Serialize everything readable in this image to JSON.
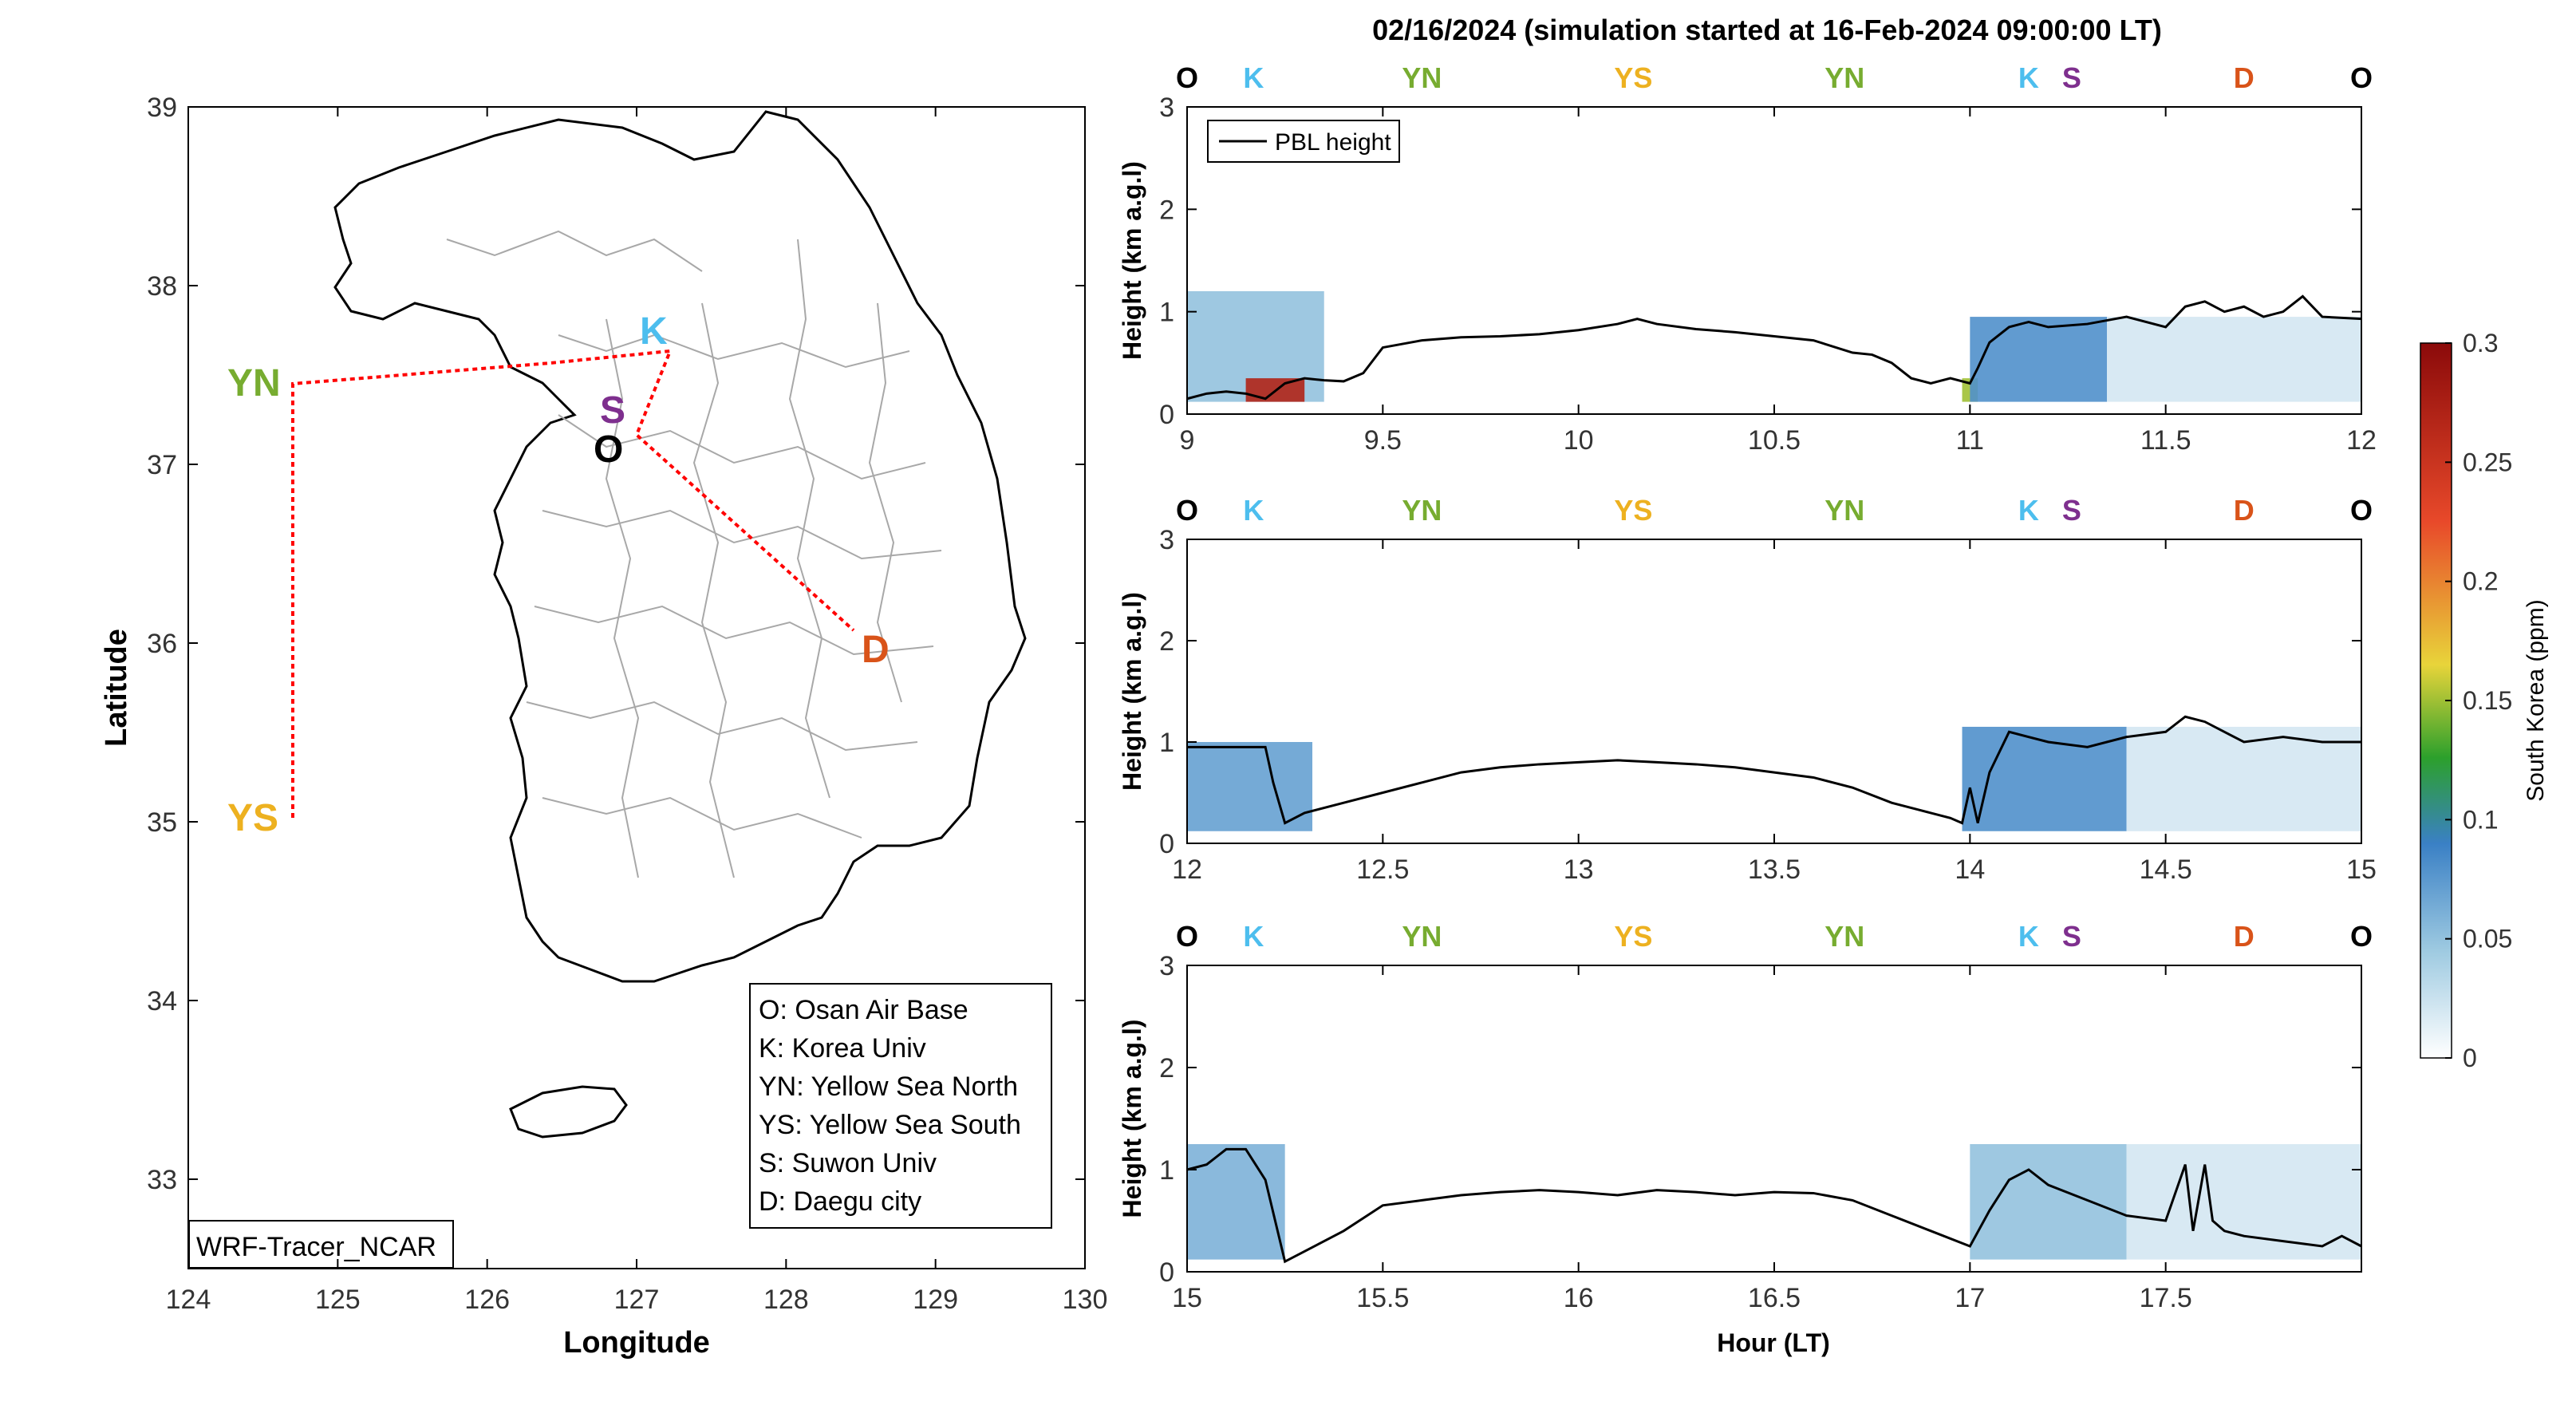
{
  "title": "02/16/2024 (simulation started at 16-Feb-2024 09:00:00 LT)",
  "colors": {
    "O": "#000000",
    "K": "#4DBEEE",
    "YN": "#77AC30",
    "YS": "#EDB120",
    "S": "#7E2F8E",
    "D": "#D95319",
    "route": "#FF0000",
    "pbl": "#000000"
  },
  "chart_data": [
    {
      "type": "map",
      "xlabel": "Longitude",
      "ylabel": "Latitude",
      "xlim": [
        124,
        130
      ],
      "ylim": [
        32.5,
        39
      ],
      "xticks": [
        "124",
        "125",
        "126",
        "127",
        "128",
        "129",
        "130"
      ],
      "yticks": [
        "33",
        "34",
        "35",
        "36",
        "37",
        "38",
        "39"
      ],
      "sites": [
        {
          "code": "YN",
          "lon": 124.7,
          "lat": 37.45
        },
        {
          "code": "YS",
          "lon": 124.7,
          "lat": 35.05
        },
        {
          "code": "K",
          "lon": 127.2,
          "lat": 37.6
        },
        {
          "code": "S",
          "lon": 127.0,
          "lat": 37.3
        },
        {
          "code": "O",
          "lon": 127.0,
          "lat": 37.1
        },
        {
          "code": "D",
          "lon": 128.6,
          "lat": 36.1
        }
      ],
      "legend": [
        "O: Osan Air Base",
        "K: Korea Univ",
        "YN: Yellow Sea North",
        "YS: Yellow Sea South",
        "S: Suwon Univ",
        "D: Daegu city"
      ],
      "model_label": "WRF-Tracer_NCAR"
    },
    {
      "type": "heatmap",
      "ylabel": "Height (km a.g.l)",
      "xlim": [
        9,
        12
      ],
      "ylim": [
        0,
        3
      ],
      "xticks": [
        "9",
        "9.5",
        "10",
        "10.5",
        "11",
        "11.5",
        "12"
      ],
      "yticks": [
        "0",
        "1",
        "2",
        "3"
      ],
      "site_markers": [
        {
          "code": "O",
          "x": 9.0
        },
        {
          "code": "K",
          "x": 9.17
        },
        {
          "code": "YN",
          "x": 9.6
        },
        {
          "code": "YS",
          "x": 10.14
        },
        {
          "code": "YN",
          "x": 10.68
        },
        {
          "code": "K",
          "x": 11.15
        },
        {
          "code": "S",
          "x": 11.26
        },
        {
          "code": "D",
          "x": 11.7
        },
        {
          "code": "O",
          "x": 12.0
        }
      ],
      "legend": [
        "PBL height"
      ],
      "pbl": {
        "x": [
          9.0,
          9.05,
          9.1,
          9.15,
          9.2,
          9.25,
          9.3,
          9.35,
          9.4,
          9.45,
          9.5,
          9.6,
          9.7,
          9.8,
          9.9,
          10.0,
          10.1,
          10.15,
          10.2,
          10.3,
          10.4,
          10.5,
          10.6,
          10.7,
          10.75,
          10.8,
          10.85,
          10.9,
          10.95,
          11.0,
          11.02,
          11.05,
          11.1,
          11.15,
          11.2,
          11.3,
          11.4,
          11.5,
          11.55,
          11.6,
          11.65,
          11.7,
          11.75,
          11.8,
          11.85,
          11.9,
          12.0
        ],
        "y": [
          0.15,
          0.2,
          0.22,
          0.2,
          0.15,
          0.3,
          0.35,
          0.33,
          0.32,
          0.4,
          0.65,
          0.72,
          0.75,
          0.76,
          0.78,
          0.82,
          0.88,
          0.93,
          0.88,
          0.83,
          0.8,
          0.76,
          0.72,
          0.6,
          0.58,
          0.5,
          0.35,
          0.3,
          0.35,
          0.3,
          0.45,
          0.7,
          0.85,
          0.9,
          0.85,
          0.88,
          0.95,
          0.85,
          1.05,
          1.1,
          1.0,
          1.05,
          0.95,
          1.0,
          1.15,
          0.95,
          0.93
        ]
      },
      "concentration": [
        {
          "x0": 9.0,
          "x1": 9.35,
          "h": 1.2,
          "c": 0.05
        },
        {
          "x0": 9.15,
          "x1": 9.3,
          "h": 0.35,
          "c": 0.27
        },
        {
          "x0": 10.98,
          "x1": 11.02,
          "h": 0.35,
          "c": 0.15
        },
        {
          "x0": 11.0,
          "x1": 11.35,
          "h": 0.95,
          "c": 0.08
        },
        {
          "x0": 11.35,
          "x1": 12.0,
          "h": 0.95,
          "c": 0.02
        }
      ]
    },
    {
      "type": "heatmap",
      "ylabel": "Height (km a.g.l)",
      "xlim": [
        12,
        15
      ],
      "ylim": [
        0,
        3
      ],
      "xticks": [
        "12",
        "12.5",
        "13",
        "13.5",
        "14",
        "14.5",
        "15"
      ],
      "yticks": [
        "0",
        "1",
        "2",
        "3"
      ],
      "site_markers": [
        {
          "code": "O",
          "x": 12.0
        },
        {
          "code": "K",
          "x": 12.17
        },
        {
          "code": "YN",
          "x": 12.6
        },
        {
          "code": "YS",
          "x": 13.14
        },
        {
          "code": "YN",
          "x": 13.68
        },
        {
          "code": "K",
          "x": 14.15
        },
        {
          "code": "S",
          "x": 14.26
        },
        {
          "code": "D",
          "x": 14.7
        },
        {
          "code": "O",
          "x": 15.0
        }
      ],
      "pbl": {
        "x": [
          12.0,
          12.1,
          12.2,
          12.22,
          12.25,
          12.3,
          12.4,
          12.5,
          12.6,
          12.7,
          12.8,
          12.9,
          13.0,
          13.1,
          13.2,
          13.3,
          13.4,
          13.5,
          13.6,
          13.7,
          13.8,
          13.9,
          13.95,
          13.98,
          14.0,
          14.02,
          14.05,
          14.1,
          14.2,
          14.3,
          14.4,
          14.5,
          14.55,
          14.6,
          14.7,
          14.8,
          14.9,
          15.0
        ],
        "y": [
          0.95,
          0.95,
          0.95,
          0.6,
          0.2,
          0.3,
          0.4,
          0.5,
          0.6,
          0.7,
          0.75,
          0.78,
          0.8,
          0.82,
          0.8,
          0.78,
          0.75,
          0.7,
          0.65,
          0.55,
          0.4,
          0.3,
          0.25,
          0.2,
          0.55,
          0.2,
          0.7,
          1.1,
          1.0,
          0.95,
          1.05,
          1.1,
          1.25,
          1.2,
          1.0,
          1.05,
          1.0,
          1.0
        ]
      },
      "concentration": [
        {
          "x0": 12.0,
          "x1": 12.32,
          "h": 1.0,
          "c": 0.07
        },
        {
          "x0": 13.98,
          "x1": 14.4,
          "h": 1.15,
          "c": 0.08
        },
        {
          "x0": 14.4,
          "x1": 15.0,
          "h": 1.15,
          "c": 0.02
        }
      ]
    },
    {
      "type": "heatmap",
      "ylabel": "Height (km a.g.l)",
      "xlabel": "Hour (LT)",
      "xlim": [
        15,
        18
      ],
      "ylim": [
        0,
        3
      ],
      "xticks": [
        "15",
        "15.5",
        "16",
        "16.5",
        "17",
        "17.5"
      ],
      "yticks": [
        "0",
        "1",
        "2",
        "3"
      ],
      "site_markers": [
        {
          "code": "O",
          "x": 15.0
        },
        {
          "code": "K",
          "x": 15.17
        },
        {
          "code": "YN",
          "x": 15.6
        },
        {
          "code": "YS",
          "x": 16.14
        },
        {
          "code": "YN",
          "x": 16.68
        },
        {
          "code": "K",
          "x": 17.15
        },
        {
          "code": "S",
          "x": 17.26
        },
        {
          "code": "D",
          "x": 17.7
        },
        {
          "code": "O",
          "x": 18.0
        }
      ],
      "pbl": {
        "x": [
          15.0,
          15.05,
          15.1,
          15.15,
          15.2,
          15.25,
          15.3,
          15.4,
          15.5,
          15.6,
          15.7,
          15.8,
          15.9,
          16.0,
          16.1,
          16.2,
          16.3,
          16.4,
          16.5,
          16.6,
          16.7,
          16.8,
          16.9,
          17.0,
          17.05,
          17.1,
          17.15,
          17.2,
          17.3,
          17.4,
          17.5,
          17.55,
          17.57,
          17.6,
          17.62,
          17.65,
          17.7,
          17.8,
          17.9,
          17.95,
          18.0
        ],
        "y": [
          1.0,
          1.05,
          1.2,
          1.2,
          0.9,
          0.1,
          0.2,
          0.4,
          0.65,
          0.7,
          0.75,
          0.78,
          0.8,
          0.78,
          0.75,
          0.8,
          0.78,
          0.75,
          0.78,
          0.77,
          0.7,
          0.55,
          0.4,
          0.25,
          0.6,
          0.9,
          1.0,
          0.85,
          0.7,
          0.55,
          0.5,
          1.05,
          0.4,
          1.05,
          0.5,
          0.4,
          0.35,
          0.3,
          0.25,
          0.35,
          0.25
        ]
      },
      "concentration": [
        {
          "x0": 15.0,
          "x1": 15.25,
          "h": 1.25,
          "c": 0.06
        },
        {
          "x0": 17.0,
          "x1": 17.4,
          "h": 1.25,
          "c": 0.05
        },
        {
          "x0": 17.4,
          "x1": 18.0,
          "h": 1.25,
          "c": 0.02
        }
      ]
    },
    {
      "type": "colorbar",
      "label": "South Korea (ppm)",
      "ticks": [
        "0",
        "0.05",
        "0.1",
        "0.15",
        "0.2",
        "0.25",
        "0.3"
      ],
      "lim": [
        0,
        0.3
      ]
    }
  ]
}
